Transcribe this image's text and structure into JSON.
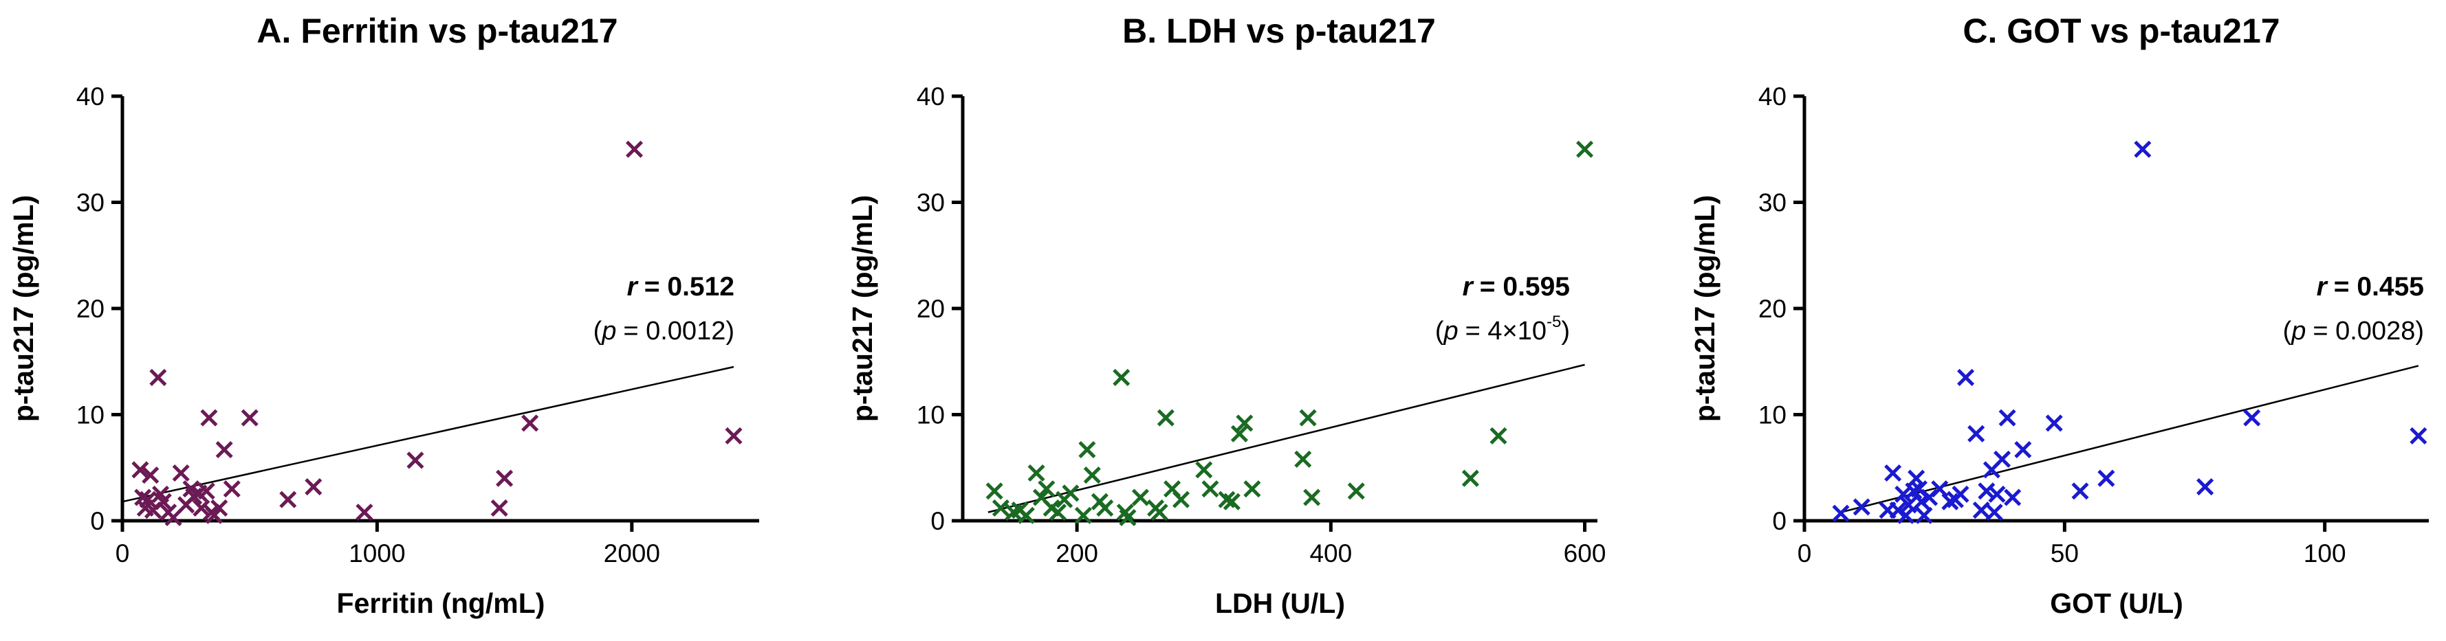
{
  "chart_data": [
    {
      "type": "scatter",
      "title": "A. Ferritin vs p-tau217",
      "xlabel": "Ferritin (ng/mL)",
      "ylabel": "p-tau217 (pg/mL)",
      "xlim": [
        0,
        2500
      ],
      "ylim": [
        0,
        40
      ],
      "xticks": [
        0,
        1000,
        2000
      ],
      "yticks": [
        0,
        10,
        20,
        30,
        40
      ],
      "xtick_labels": [
        "0",
        "1000",
        "2000"
      ],
      "ytick_labels": [
        "0",
        "10",
        "20",
        "30",
        "40"
      ],
      "marker": "x",
      "color": "#6b1a55",
      "r_label": "r",
      "r_value": "= 0.512",
      "p_open": "(",
      "p_label": "p",
      "p_value": "= 0.0012)",
      "p_exponent": "",
      "p_close": "",
      "fit_line": {
        "x": [
          0,
          2400
        ],
        "y": [
          1.8,
          14.5
        ]
      },
      "points": [
        [
          70,
          4.8
        ],
        [
          80,
          2.2
        ],
        [
          90,
          1.2
        ],
        [
          100,
          2.0
        ],
        [
          110,
          4.3
        ],
        [
          120,
          1.0
        ],
        [
          140,
          13.5
        ],
        [
          150,
          2.5
        ],
        [
          160,
          1.8
        ],
        [
          180,
          0.8
        ],
        [
          200,
          0.3
        ],
        [
          230,
          4.5
        ],
        [
          250,
          1.5
        ],
        [
          270,
          3.0
        ],
        [
          280,
          2.3
        ],
        [
          300,
          2.6
        ],
        [
          310,
          1.2
        ],
        [
          330,
          2.8
        ],
        [
          340,
          9.7
        ],
        [
          350,
          0.8
        ],
        [
          360,
          0.5
        ],
        [
          380,
          1.2
        ],
        [
          400,
          6.7
        ],
        [
          430,
          3.0
        ],
        [
          500,
          9.7
        ],
        [
          650,
          2.0
        ],
        [
          750,
          3.2
        ],
        [
          950,
          0.8
        ],
        [
          1150,
          5.7
        ],
        [
          1480,
          1.2
        ],
        [
          1500,
          4.0
        ],
        [
          1600,
          9.2
        ],
        [
          2010,
          35.0
        ],
        [
          2400,
          8.0
        ]
      ]
    },
    {
      "type": "scatter",
      "title": "B. LDH vs p-tau217",
      "xlabel": "LDH (U/L)",
      "ylabel": "p-tau217 (pg/mL)",
      "xlim": [
        110,
        610
      ],
      "ylim": [
        0,
        40
      ],
      "xticks": [
        200,
        400,
        600
      ],
      "yticks": [
        0,
        10,
        20,
        30,
        40
      ],
      "xtick_labels": [
        "200",
        "400",
        "600"
      ],
      "ytick_labels": [
        "0",
        "10",
        "20",
        "30",
        "40"
      ],
      "marker": "x",
      "color": "#1a6b22",
      "r_label": "r",
      "r_value": "= 0.595",
      "p_open": "(",
      "p_label": "p",
      "p_value": "= 4×10",
      "p_exponent": "-5",
      "p_close": ")",
      "fit_line": {
        "x": [
          130,
          600
        ],
        "y": [
          0.8,
          14.7
        ]
      },
      "points": [
        [
          135,
          2.8
        ],
        [
          140,
          1.2
        ],
        [
          150,
          0.8
        ],
        [
          155,
          1.0
        ],
        [
          160,
          0.5
        ],
        [
          168,
          4.5
        ],
        [
          172,
          2.2
        ],
        [
          176,
          3.0
        ],
        [
          180,
          1.2
        ],
        [
          185,
          0.8
        ],
        [
          190,
          2.0
        ],
        [
          195,
          2.6
        ],
        [
          205,
          0.5
        ],
        [
          208,
          6.7
        ],
        [
          212,
          4.3
        ],
        [
          218,
          1.8
        ],
        [
          222,
          1.2
        ],
        [
          235,
          13.5
        ],
        [
          238,
          0.8
        ],
        [
          240,
          0.3
        ],
        [
          250,
          2.2
        ],
        [
          262,
          1.2
        ],
        [
          265,
          0.8
        ],
        [
          270,
          9.7
        ],
        [
          275,
          3.0
        ],
        [
          282,
          2.0
        ],
        [
          300,
          4.8
        ],
        [
          305,
          3.0
        ],
        [
          318,
          2.0
        ],
        [
          322,
          1.8
        ],
        [
          328,
          8.2
        ],
        [
          332,
          9.2
        ],
        [
          338,
          3.0
        ],
        [
          378,
          5.8
        ],
        [
          382,
          9.7
        ],
        [
          385,
          2.2
        ],
        [
          420,
          2.8
        ],
        [
          510,
          4.0
        ],
        [
          532,
          8.0
        ],
        [
          600,
          35.0
        ]
      ]
    },
    {
      "type": "scatter",
      "title": "C. GOT vs p-tau217",
      "xlabel": "GOT (U/L)",
      "ylabel": "p-tau217 (pg/mL)",
      "xlim": [
        0,
        120
      ],
      "ylim": [
        0,
        40
      ],
      "xticks": [
        0,
        50,
        100
      ],
      "yticks": [
        0,
        10,
        20,
        30,
        40
      ],
      "xtick_labels": [
        "0",
        "50",
        "100"
      ],
      "ytick_labels": [
        "0",
        "10",
        "20",
        "30",
        "40"
      ],
      "marker": "x",
      "color": "#1a1ad0",
      "r_label": "r",
      "r_value": "= 0.455",
      "p_open": "(",
      "p_label": "p",
      "p_value": "= 0.0028)",
      "p_exponent": "",
      "p_close": "",
      "fit_line": {
        "x": [
          7,
          118
        ],
        "y": [
          0.8,
          14.6
        ]
      },
      "points": [
        [
          7,
          0.7
        ],
        [
          11,
          1.3
        ],
        [
          16,
          1.0
        ],
        [
          17,
          4.5
        ],
        [
          18,
          1.0
        ],
        [
          19,
          2.5
        ],
        [
          19.5,
          0.5
        ],
        [
          20,
          1.5
        ],
        [
          21,
          2.8
        ],
        [
          21.5,
          4.0
        ],
        [
          22,
          3.0
        ],
        [
          22.5,
          1.8
        ],
        [
          23,
          0.5
        ],
        [
          24,
          2.2
        ],
        [
          26,
          3.0
        ],
        [
          28,
          1.8
        ],
        [
          29,
          2.0
        ],
        [
          30,
          2.5
        ],
        [
          31,
          13.5
        ],
        [
          33,
          8.2
        ],
        [
          34,
          1.0
        ],
        [
          35,
          2.8
        ],
        [
          36,
          4.8
        ],
        [
          36.5,
          0.8
        ],
        [
          37,
          2.5
        ],
        [
          38,
          5.8
        ],
        [
          39,
          9.7
        ],
        [
          40,
          2.2
        ],
        [
          42,
          6.7
        ],
        [
          48,
          9.2
        ],
        [
          53,
          2.8
        ],
        [
          58,
          4.0
        ],
        [
          65,
          35.0
        ],
        [
          77,
          3.2
        ],
        [
          86,
          9.7
        ],
        [
          118,
          8.0
        ]
      ]
    }
  ]
}
